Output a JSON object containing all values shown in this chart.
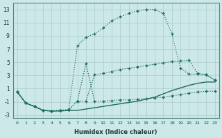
{
  "xlabel": "Humidex (Indice chaleur)",
  "ylabel": "",
  "bg_color": "#cde8e8",
  "grid_color": "#b0d0d0",
  "line_color": "#1a6b5a",
  "xlim": [
    -0.5,
    23.5
  ],
  "ylim": [
    -3.5,
    14
  ],
  "xticks": [
    0,
    1,
    2,
    3,
    4,
    5,
    6,
    7,
    8,
    9,
    10,
    11,
    12,
    13,
    14,
    15,
    16,
    17,
    18,
    19,
    20,
    21,
    22,
    23
  ],
  "yticks": [
    -3,
    -1,
    1,
    3,
    5,
    7,
    9,
    11,
    13
  ],
  "series": [
    {
      "x": [
        0,
        1,
        2,
        3,
        4,
        5,
        6,
        7,
        8,
        9,
        10,
        11,
        12,
        13,
        14,
        15,
        16,
        17,
        18,
        19,
        20,
        21,
        22,
        23
      ],
      "y": [
        0.5,
        -1.2,
        -1.7,
        -2.3,
        -2.4,
        -2.4,
        -2.3,
        -2.3,
        -2.1,
        -1.9,
        -1.7,
        -1.5,
        -1.3,
        -1.1,
        -0.9,
        -0.6,
        -0.3,
        0.2,
        0.7,
        1.1,
        1.5,
        1.8,
        2.0,
        2.0
      ],
      "marker": null,
      "linestyle": "-",
      "linewidth": 1.0
    },
    {
      "x": [
        0,
        1,
        2,
        3,
        4,
        5,
        6,
        7,
        8,
        9,
        10,
        11,
        12,
        13,
        14,
        15,
        16,
        17,
        18,
        19,
        20,
        21,
        22,
        23
      ],
      "y": [
        0.5,
        -1.2,
        -1.7,
        -2.3,
        -2.4,
        -2.3,
        -2.2,
        -0.9,
        4.8,
        -0.9,
        -0.9,
        -0.8,
        -0.7,
        -0.7,
        -0.6,
        -0.5,
        -0.4,
        -0.3,
        -0.1,
        0.1,
        0.3,
        0.5,
        0.6,
        0.6
      ],
      "marker": "+",
      "markersize": 3,
      "linestyle": ":",
      "linewidth": 0.9
    },
    {
      "x": [
        0,
        1,
        2,
        3,
        4,
        5,
        6,
        7,
        8,
        9,
        10,
        11,
        12,
        13,
        14,
        15,
        16,
        17,
        18,
        19,
        20,
        21,
        22,
        23
      ],
      "y": [
        0.5,
        -1.2,
        -1.7,
        -2.3,
        -2.4,
        -2.3,
        -2.2,
        -0.9,
        -0.9,
        3.1,
        3.3,
        3.6,
        3.9,
        4.1,
        4.3,
        4.5,
        4.7,
        4.9,
        5.1,
        5.2,
        5.3,
        3.3,
        3.1,
        2.3
      ],
      "marker": "+",
      "markersize": 3,
      "linestyle": ":",
      "linewidth": 0.9
    },
    {
      "x": [
        0,
        1,
        2,
        3,
        4,
        5,
        6,
        7,
        8,
        9,
        10,
        11,
        12,
        13,
        14,
        15,
        16,
        17,
        18,
        19,
        20,
        21,
        22,
        23
      ],
      "y": [
        0.5,
        -1.2,
        -1.7,
        -2.3,
        -2.4,
        -2.3,
        -2.2,
        7.5,
        8.8,
        9.3,
        10.2,
        11.3,
        11.9,
        12.4,
        12.8,
        13.0,
        13.0,
        12.4,
        9.3,
        4.1,
        3.2,
        3.2,
        3.1,
        2.3
      ],
      "marker": "+",
      "markersize": 3,
      "linestyle": ":",
      "linewidth": 0.9
    }
  ]
}
